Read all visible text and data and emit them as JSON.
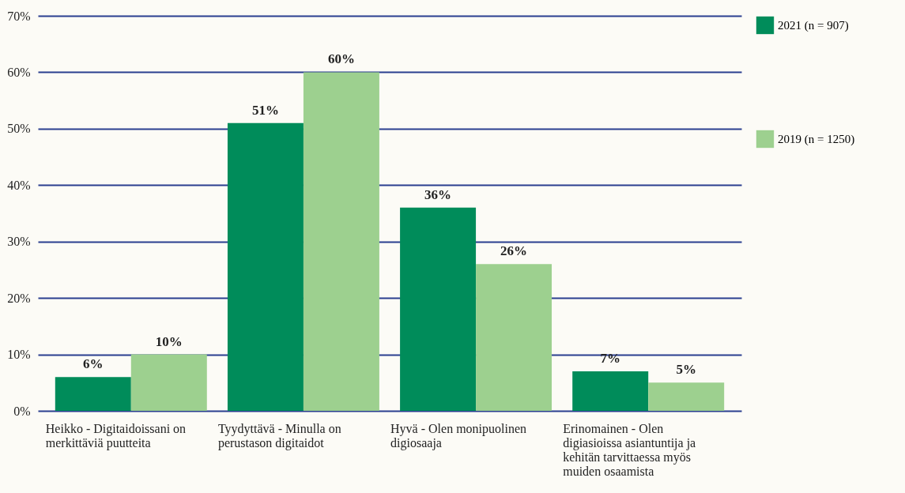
{
  "chart_data": {
    "type": "bar",
    "categories": [
      "Heikko - Digitaidoissani on merkittäviä puutteita",
      "Tyydyttävä - Minulla on perustason digitaidot",
      "Hyvä - Olen monipuolinen digiosaaja",
      "Erinomainen - Olen digiasioissa asiantuntija ja kehitän tarvittaessa myös muiden osaamista"
    ],
    "series": [
      {
        "name": "2021 (n = 907)",
        "color": "#008c5a",
        "values": [
          6,
          51,
          36,
          7
        ],
        "value_labels": [
          "6%",
          "51%",
          "36%",
          "7%"
        ]
      },
      {
        "name": "2019 (n = 1250)",
        "color": "#9dd08f",
        "values": [
          10,
          60,
          26,
          5
        ],
        "value_labels": [
          "10%",
          "60%",
          "26%",
          "5%"
        ]
      }
    ],
    "ylim": [
      0,
      70
    ],
    "yticks": [
      {
        "value": 0,
        "label": "0%"
      },
      {
        "value": 10,
        "label": "10%"
      },
      {
        "value": 20,
        "label": "20%"
      },
      {
        "value": 30,
        "label": "30%"
      },
      {
        "value": 40,
        "label": "40%"
      },
      {
        "value": 50,
        "label": "50%"
      },
      {
        "value": 60,
        "label": "60%"
      },
      {
        "value": 70,
        "label": "70%"
      }
    ],
    "grid": "y",
    "legend": "right"
  }
}
